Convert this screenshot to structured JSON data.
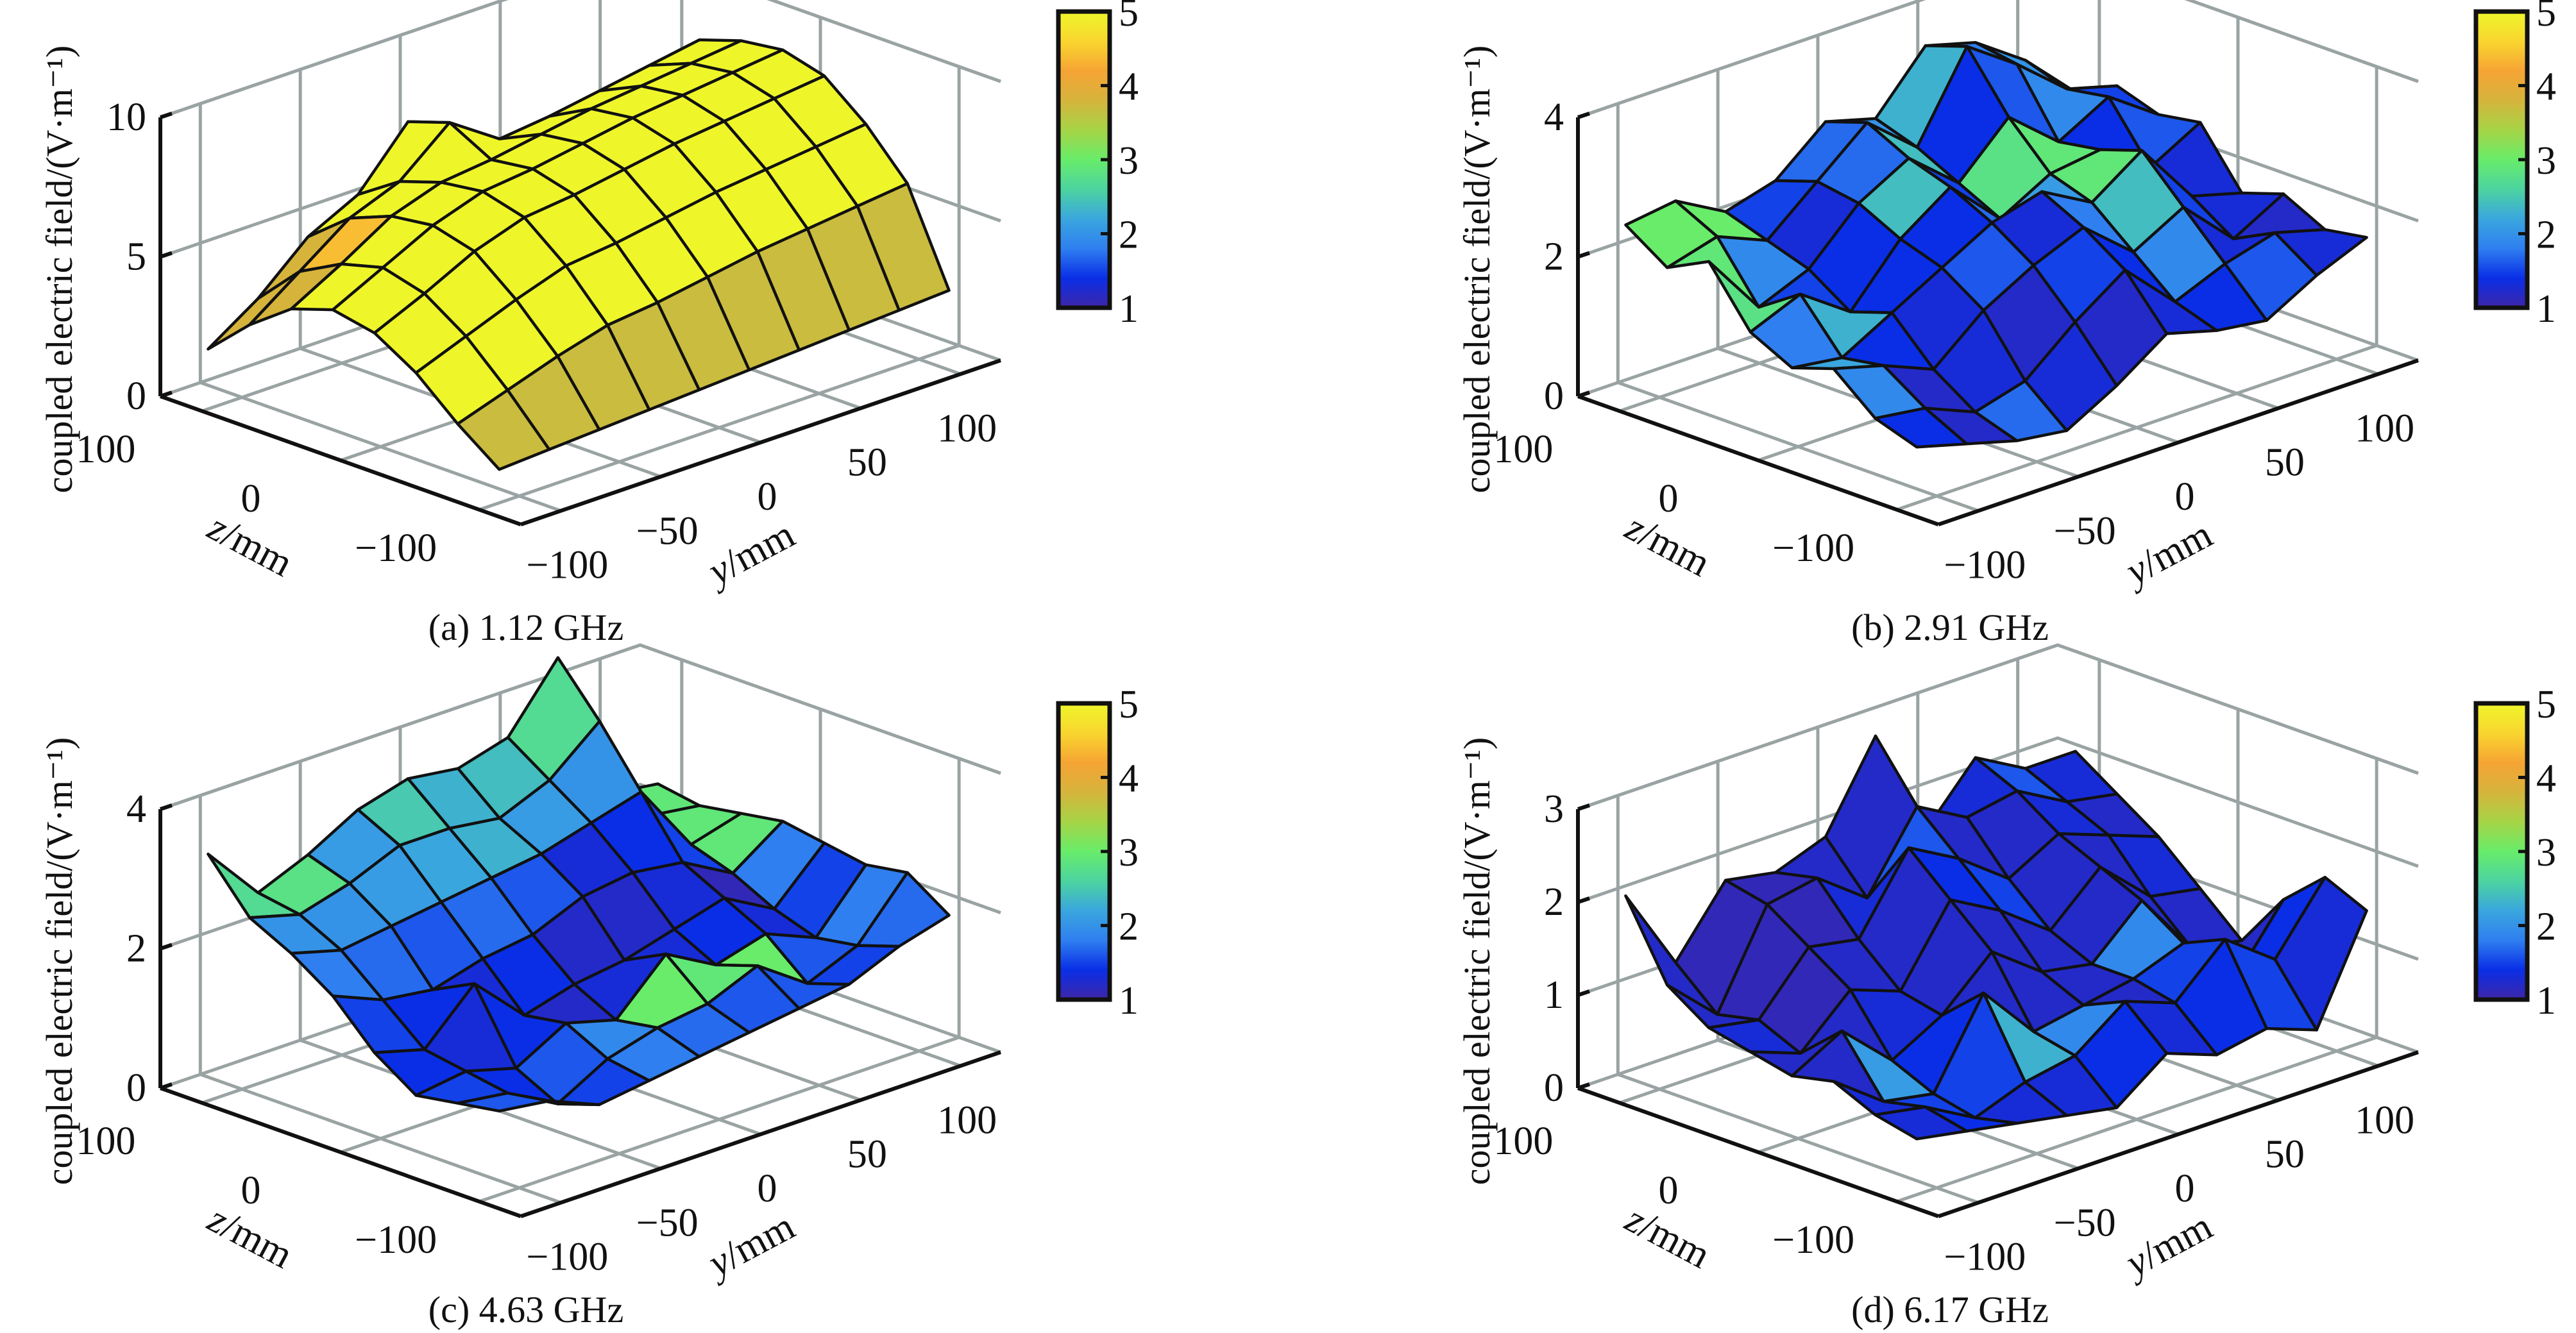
{
  "figure": {
    "colormap_stops": [
      "#3e26a8",
      "#0a2ee6",
      "#2f7ff0",
      "#3aa6de",
      "#4cd4a0",
      "#68ec6a",
      "#a6d446",
      "#d6b43c",
      "#f6a434",
      "#f9d62f",
      "#eef62a"
    ]
  },
  "chart_data": [
    {
      "type": "surface3d",
      "panel": "a",
      "caption": "(a) 1.12 GHz",
      "zlabel": "coupled electric field/(V·m⁻¹)",
      "xlabel": "y/mm",
      "ylabel": "z/mm",
      "y_ticks": [
        "−100",
        "−50",
        "0",
        "50",
        "100"
      ],
      "z_ticks": [
        "100",
        "0",
        "−100"
      ],
      "value_ticks": [
        "0",
        "5",
        "10"
      ],
      "value_range": [
        0,
        10
      ],
      "y_range": [
        -120,
        120
      ],
      "z_range": [
        -130,
        130
      ],
      "colorbar": {
        "ticks": [
          "1",
          "2",
          "3",
          "4",
          "5"
        ],
        "range": [
          1,
          5
        ]
      },
      "y": [
        -110,
        -85,
        -60,
        -35,
        -10,
        15,
        40,
        65,
        90,
        115
      ],
      "z": [
        110,
        80,
        50,
        20,
        -10,
        -40,
        -70,
        -100
      ],
      "values": [
        [
          1.8,
          3.0,
          4.6,
          5.5,
          7.5,
          5.3,
          5.5,
          5.8,
          6.2,
          6.6
        ],
        [
          3.2,
          4.5,
          5.8,
          6.5,
          8.0,
          6.8,
          7.0,
          7.3,
          7.6,
          7.9
        ],
        [
          4.3,
          5.3,
          6.4,
          7.0,
          7.2,
          7.5,
          7.8,
          8.0,
          8.2,
          8.4
        ],
        [
          4.8,
          5.7,
          6.6,
          7.2,
          7.4,
          7.7,
          8.0,
          8.2,
          8.4,
          8.6
        ],
        [
          4.5,
          5.3,
          6.2,
          6.8,
          7.0,
          7.3,
          7.6,
          7.8,
          8.0,
          8.2
        ],
        [
          3.6,
          4.3,
          5.0,
          5.6,
          5.8,
          6.1,
          6.4,
          6.6,
          6.8,
          7.0
        ],
        [
          2.3,
          2.9,
          3.5,
          4.0,
          4.2,
          4.5,
          4.8,
          5.0,
          5.2,
          5.4
        ],
        [
          1.2,
          1.3,
          1.4,
          1.5,
          1.6,
          1.7,
          1.8,
          1.9,
          2.0,
          2.1
        ]
      ],
      "color_values": [
        [
          3.8,
          3.8,
          5,
          5,
          5,
          5,
          5,
          5,
          5,
          5
        ],
        [
          3.8,
          4.4,
          5,
          5,
          5,
          5,
          5,
          5,
          5,
          5
        ],
        [
          5,
          5,
          5,
          5,
          5,
          5,
          5,
          5,
          5,
          5
        ],
        [
          5,
          5,
          5,
          5,
          5,
          5,
          5,
          5,
          5,
          5
        ],
        [
          5,
          5,
          5,
          5,
          5,
          5,
          5,
          5,
          5,
          5
        ],
        [
          5,
          5,
          5,
          5,
          5,
          5,
          5,
          5,
          5,
          5
        ],
        [
          3.7,
          3.7,
          3.7,
          3.7,
          3.7,
          3.7,
          3.7,
          3.7,
          3.7,
          3.7
        ],
        [
          1.25,
          1.25,
          1.25,
          1.25,
          1.25,
          1.25,
          1.25,
          1.25,
          1.25,
          1.25
        ]
      ]
    },
    {
      "type": "surface3d",
      "panel": "b",
      "caption": "(b) 2.91 GHz",
      "zlabel": "coupled electric field/(V·m⁻¹)",
      "xlabel": "y/mm",
      "ylabel": "z/mm",
      "y_ticks": [
        "−100",
        "−50",
        "0",
        "50",
        "100"
      ],
      "z_ticks": [
        "100",
        "0",
        "−100"
      ],
      "value_ticks": [
        "0",
        "2",
        "4"
      ],
      "value_range": [
        0,
        4
      ],
      "y_range": [
        -120,
        120
      ],
      "z_range": [
        -130,
        130
      ],
      "colorbar": {
        "ticks": [
          "1",
          "2",
          "3",
          "4",
          "5"
        ],
        "range": [
          1,
          5
        ]
      },
      "y": [
        -110,
        -85,
        -60,
        -35,
        -10,
        15,
        40,
        65,
        90,
        115
      ],
      "z": [
        110,
        80,
        50,
        20,
        -10,
        -40,
        -70,
        -100
      ],
      "values": [
        [
          2.5,
          2.6,
          2.2,
          2.4,
          3.0,
          2.8,
          3.6,
          3.4,
          2.9,
          2.2
        ],
        [
          2.1,
          2.3,
          2.0,
          2.6,
          3.2,
          2.6,
          3.8,
          3.3,
          2.7,
          2.5
        ],
        [
          2.4,
          1.5,
          1.8,
          2.5,
          2.9,
          2.3,
          3.0,
          2.4,
          2.8,
          2.3
        ],
        [
          1.6,
          1.9,
          1.4,
          2.2,
          2.7,
          2.0,
          2.4,
          2.5,
          2.0,
          2.4
        ],
        [
          1.3,
          1.2,
          1.6,
          2.0,
          2.4,
          2.6,
          2.2,
          2.7,
          1.8,
          1.6
        ],
        [
          1.5,
          1.3,
          1.0,
          1.6,
          2.0,
          2.3,
          1.7,
          2.1,
          1.4,
          1.8
        ],
        [
          1.0,
          0.9,
          0.6,
          0.8,
          1.4,
          1.9,
          1.2,
          1.5,
          1.7,
          1.5
        ],
        [
          0.8,
          0.6,
          0.4,
          0.3,
          0.7,
          1.2,
          1.0,
          0.9,
          1.3,
          1.6
        ]
      ],
      "color_values": [
        [
          3.0,
          3.0,
          1.5,
          1.7,
          2.0,
          2.3,
          1.8,
          2.0,
          1.5,
          1.6
        ],
        [
          2.9,
          1.9,
          1.3,
          1.7,
          2.4,
          1.4,
          1.6,
          1.9,
          1.5,
          1.7
        ],
        [
          2.8,
          1.5,
          1.4,
          2.4,
          1.5,
          2.8,
          2.9,
          1.4,
          1.6,
          1.8
        ],
        [
          1.8,
          2.3,
          1.4,
          1.4,
          1.7,
          2.1,
          2.9,
          2.4,
          1.3,
          1.4
        ],
        [
          2.2,
          1.4,
          1.3,
          1.6,
          1.3,
          1.8,
          2.4,
          1.5,
          1.3,
          1.5
        ],
        [
          1.9,
          1.2,
          1.3,
          1.2,
          1.5,
          1.4,
          1.9,
          1.3,
          1.2,
          1.4
        ],
        [
          1.4,
          1.2,
          1.7,
          1.3,
          1.2,
          1.3,
          1.4,
          1.6,
          1.3,
          1.3
        ],
        [
          1.3,
          1.3,
          1.4,
          1.3,
          1.3,
          1.3,
          1.3,
          1.3,
          1.3,
          1.3
        ]
      ]
    },
    {
      "type": "surface3d",
      "panel": "c",
      "caption": "(c) 4.63 GHz",
      "zlabel": "coupled electric field/(V·m⁻¹)",
      "xlabel": "y/mm",
      "ylabel": "z/mm",
      "y_ticks": [
        "−100",
        "−50",
        "0",
        "50",
        "100"
      ],
      "z_ticks": [
        "100",
        "0",
        "−100"
      ],
      "value_ticks": [
        "0",
        "2",
        "4"
      ],
      "value_range": [
        0,
        4
      ],
      "y_range": [
        -120,
        120
      ],
      "z_range": [
        -130,
        130
      ],
      "colorbar": {
        "ticks": [
          "1",
          "2",
          "3",
          "4",
          "5"
        ],
        "range": [
          1,
          5
        ]
      },
      "y": [
        -110,
        -85,
        -60,
        -35,
        -10,
        15,
        40,
        65,
        90,
        115
      ],
      "z": [
        110,
        80,
        50,
        20,
        -10,
        -40,
        -70,
        -100
      ],
      "values": [
        [
          3.4,
          2.6,
          2.9,
          3.3,
          3.5,
          3.4,
          3.6,
          4.5,
          2.3,
          2.2
        ],
        [
          2.7,
          2.5,
          2.7,
          3.0,
          3.0,
          2.9,
          3.2,
          3.8,
          2.2,
          2.1
        ],
        [
          2.4,
          2.2,
          2.3,
          2.4,
          2.5,
          2.6,
          2.8,
          3.0,
          2.0,
          2.2
        ],
        [
          2.0,
          1.7,
          1.6,
          1.8,
          1.9,
          2.2,
          2.3,
          2.2,
          1.8,
          2.3
        ],
        [
          1.4,
          1.2,
          1.9,
          1.2,
          1.4,
          1.5,
          1.7,
          1.9,
          1.5,
          2.2
        ],
        [
          1.0,
          1.1,
          0.9,
          1.3,
          1.1,
          1.8,
          1.4,
          1.6,
          1.3,
          2.1
        ],
        [
          1.1,
          1.0,
          0.6,
          1.0,
          1.2,
          1.3,
          1.6,
          1.1,
          1.4,
          2.2
        ],
        [
          1.2,
          1.1,
          0.8,
          0.9,
          1.0,
          1.1,
          1.2,
          1.3,
          1.6,
          1.8
        ]
      ],
      "color_values": [
        [
          2.7,
          2.8,
          2.1,
          2.5,
          2.3,
          2.4,
          2.7,
          2.6,
          2.9,
          3.0
        ],
        [
          2.0,
          2.0,
          2.1,
          2.2,
          2.3,
          2.1,
          2.0,
          2.2,
          2.9,
          2.9
        ],
        [
          1.8,
          1.7,
          1.6,
          1.7,
          1.6,
          1.3,
          1.4,
          1.5,
          2.9,
          1.9
        ],
        [
          1.5,
          1.4,
          1.3,
          1.4,
          1.2,
          1.2,
          1.3,
          1.1,
          1.8,
          1.8
        ],
        [
          1.4,
          1.3,
          1.4,
          1.2,
          1.3,
          1.3,
          1.4,
          1.3,
          1.5,
          1.7
        ],
        [
          1.5,
          1.4,
          1.6,
          1.9,
          3.0,
          2.9,
          3.0,
          1.6,
          1.8,
          1.8
        ],
        [
          1.6,
          1.6,
          1.5,
          1.8,
          1.7,
          1.6,
          1.6,
          1.5,
          1.7,
          1.8
        ],
        [
          1.5,
          1.5,
          1.5,
          1.5,
          1.5,
          1.5,
          1.5,
          1.5,
          1.5,
          1.5
        ]
      ]
    },
    {
      "type": "surface3d",
      "panel": "d",
      "caption": "(d) 6.17 GHz",
      "zlabel": "coupled electric field/(V·m⁻¹)",
      "xlabel": "y/mm",
      "ylabel": "z/mm",
      "y_ticks": [
        "−100",
        "−50",
        "0",
        "50",
        "100"
      ],
      "z_ticks": [
        "100",
        "0",
        "−100"
      ],
      "value_ticks": [
        "0",
        "1",
        "2",
        "3"
      ],
      "value_range": [
        0,
        3
      ],
      "y_range": [
        -120,
        120
      ],
      "z_range": [
        -130,
        130
      ],
      "colorbar": {
        "ticks": [
          "1",
          "2",
          "3",
          "4",
          "5"
        ],
        "range": [
          1,
          5
        ]
      },
      "y": [
        -110,
        -85,
        -60,
        -35,
        -10,
        15,
        40,
        65,
        90,
        115
      ],
      "z": [
        110,
        80,
        50,
        20,
        -10,
        -40,
        -70,
        -100
      ],
      "values": [
        [
          2.1,
          1.2,
          1.9,
          1.8,
          2.0,
          2.9,
          1.7,
          2.3,
          2.0,
          2.0
        ],
        [
          1.3,
          0.8,
          1.8,
          1.9,
          1.5,
          2.3,
          2.0,
          2.1,
          1.8,
          1.7
        ],
        [
          1.0,
          0.9,
          1.5,
          1.4,
          2.2,
          1.9,
          1.5,
          1.8,
          1.6,
          1.4
        ],
        [
          0.9,
          0.7,
          1.2,
          1.0,
          1.8,
          1.5,
          1.1,
          1.6,
          1.1,
          1.0
        ],
        [
          0.8,
          1.1,
          0.6,
          0.9,
          1.4,
          1.0,
          0.9,
          1.4,
          0.7,
          0.6
        ],
        [
          0.9,
          0.5,
          0.4,
          1.3,
          0.7,
          0.8,
          0.9,
          1.1,
          0.5,
          1.2
        ],
        [
          0.7,
          0.6,
          0.3,
          0.5,
          0.6,
          1.0,
          0.8,
          1.3,
          0.9,
          1.6
        ],
        [
          0.6,
          0.5,
          0.4,
          0.3,
          0.2,
          0.6,
          0.4,
          0.5,
          0.3,
          1.4
        ]
      ],
      "color_values": [
        [
          1.2,
          1.1,
          1.1,
          1.2,
          1.2,
          1.1,
          1.3,
          1.6,
          1.3,
          1.2
        ],
        [
          1.2,
          1.1,
          1.1,
          1.3,
          1.6,
          1.2,
          1.2,
          1.3,
          1.2,
          1.2
        ],
        [
          1.3,
          1.1,
          1.2,
          1.2,
          1.4,
          1.5,
          1.2,
          1.2,
          1.3,
          1.2
        ],
        [
          1.2,
          1.2,
          1.3,
          1.2,
          1.2,
          1.2,
          1.2,
          1.2,
          1.2,
          1.9
        ],
        [
          1.2,
          2.1,
          1.4,
          1.2,
          1.2,
          1.2,
          1.9,
          1.5,
          1.2,
          1.9
        ],
        [
          1.3,
          1.5,
          1.5,
          2.3,
          1.9,
          1.2,
          1.5,
          1.5,
          1.4,
          1.2
        ],
        [
          1.3,
          1.4,
          1.3,
          1.3,
          1.4,
          1.3,
          1.4,
          1.5,
          1.3,
          1.3
        ],
        [
          1.3,
          1.3,
          1.3,
          1.3,
          1.3,
          1.3,
          1.3,
          1.3,
          1.3,
          1.3
        ]
      ]
    }
  ]
}
